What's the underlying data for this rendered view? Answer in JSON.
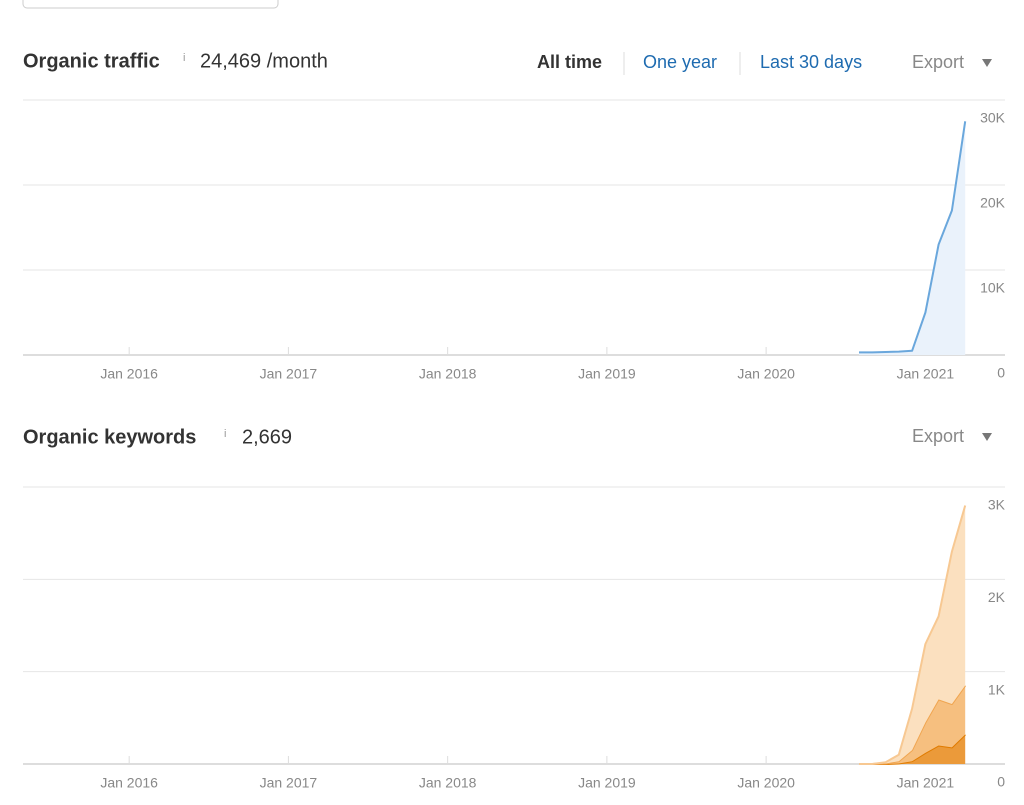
{
  "traffic": {
    "title": "Organic traffic",
    "info": "i",
    "value": "24,469 /month",
    "ranges": [
      "All time",
      "One year",
      "Last 30 days"
    ],
    "export": "Export"
  },
  "keywords": {
    "title": "Organic keywords",
    "info": "i",
    "value": "2,669",
    "export": "Export"
  },
  "chart_data": [
    {
      "type": "area",
      "x": [
        "2020-08",
        "2020-09",
        "2020-10",
        "2020-11",
        "2020-12",
        "2021-01",
        "2021-02",
        "2021-03",
        "2021-04"
      ],
      "series": [
        {
          "color": "#6aa7dc",
          "fill": "#eaf2fb",
          "values": [
            300,
            300,
            350,
            400,
            500,
            5000,
            13000,
            17000,
            27500
          ]
        }
      ],
      "xlim": [
        "2015-05",
        "2021-07"
      ],
      "xticks": [
        {
          "value": "2016-01",
          "label": "Jan 2016"
        },
        {
          "value": "2017-01",
          "label": "Jan 2017"
        },
        {
          "value": "2018-01",
          "label": "Jan 2018"
        },
        {
          "value": "2019-01",
          "label": "Jan 2019"
        },
        {
          "value": "2020-01",
          "label": "Jan 2020"
        },
        {
          "value": "2021-01",
          "label": "Jan 2021"
        }
      ],
      "ylim": [
        0,
        30000
      ],
      "yticks": [
        0,
        {
          "value": 10000,
          "label": "10K"
        },
        {
          "value": 20000,
          "label": "20K"
        },
        {
          "value": 30000,
          "label": "30K"
        }
      ],
      "grid": true
    },
    {
      "type": "stacked-area",
      "x": [
        "2020-08",
        "2020-09",
        "2020-10",
        "2020-11",
        "2020-12",
        "2021-01",
        "2021-02",
        "2021-03",
        "2021-04"
      ],
      "series": [
        {
          "color": "#e07b00",
          "fill": "#eb9a3a",
          "values": [
            0,
            0,
            0,
            5,
            30,
            120,
            200,
            180,
            320
          ]
        },
        {
          "color": "#f0a550",
          "fill": "#f6bf7f",
          "values": [
            0,
            0,
            5,
            25,
            120,
            330,
            500,
            470,
            530
          ]
        },
        {
          "color": "#f7c892",
          "fill": "#fbe0bf",
          "values": [
            0,
            0,
            15,
            70,
            450,
            850,
            900,
            1650,
            1950
          ]
        }
      ],
      "xlim": [
        "2015-05",
        "2021-07"
      ],
      "xticks": [
        {
          "value": "2016-01",
          "label": "Jan 2016"
        },
        {
          "value": "2017-01",
          "label": "Jan 2017"
        },
        {
          "value": "2018-01",
          "label": "Jan 2018"
        },
        {
          "value": "2019-01",
          "label": "Jan 2019"
        },
        {
          "value": "2020-01",
          "label": "Jan 2020"
        },
        {
          "value": "2021-01",
          "label": "Jan 2021"
        }
      ],
      "ylim": [
        0,
        3000
      ],
      "yticks": [
        0,
        {
          "value": 1000,
          "label": "1K"
        },
        {
          "value": 2000,
          "label": "2K"
        },
        {
          "value": 3000,
          "label": "3K"
        }
      ],
      "grid": true
    }
  ]
}
